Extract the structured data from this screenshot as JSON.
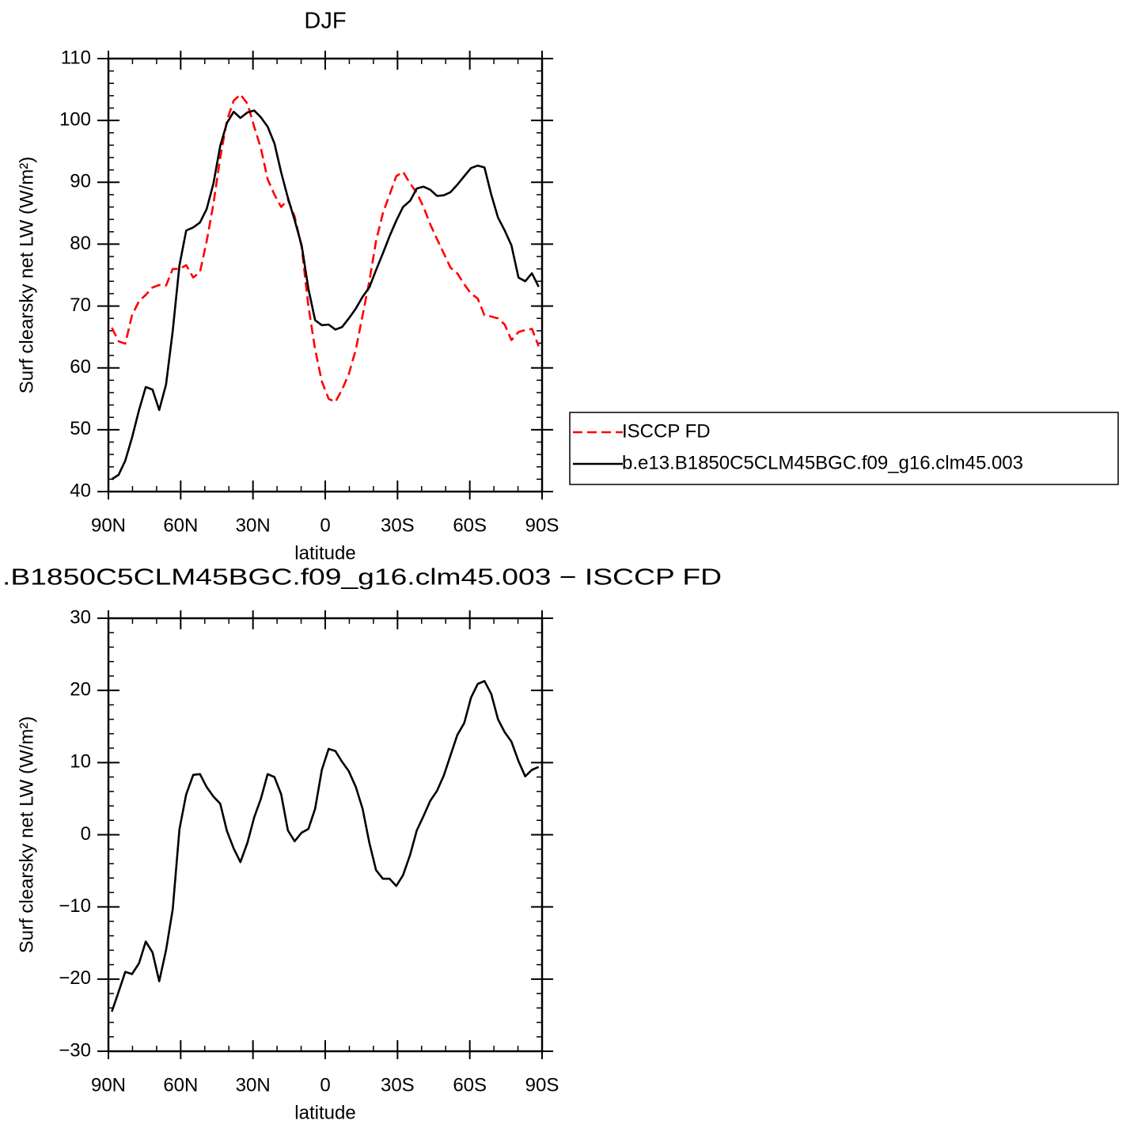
{
  "chart_data": [
    {
      "type": "line",
      "title": "DJF",
      "xlabel": "latitude",
      "ylabel": "Surf clearsky net LW (W/m²)",
      "x": [
        88.6,
        85.8,
        83.0,
        80.2,
        77.3,
        74.5,
        71.7,
        68.9,
        66.1,
        63.3,
        60.5,
        57.7,
        54.8,
        52.0,
        49.2,
        46.4,
        43.6,
        40.8,
        38.0,
        35.2,
        32.3,
        29.5,
        26.7,
        23.9,
        21.1,
        18.3,
        15.5,
        12.7,
        9.8,
        7.0,
        4.2,
        1.4,
        -1.4,
        -4.2,
        -7.0,
        -9.8,
        -12.7,
        -15.5,
        -18.3,
        -21.1,
        -23.9,
        -26.7,
        -29.5,
        -32.3,
        -35.2,
        -38.0,
        -40.8,
        -43.6,
        -46.4,
        -49.2,
        -52.0,
        -54.8,
        -57.7,
        -60.5,
        -63.3,
        -66.1,
        -68.9,
        -71.7,
        -74.5,
        -77.3,
        -80.2,
        -83.0,
        -85.8,
        -88.6
      ],
      "series": [
        {
          "name": "ISCCP FD",
          "color": "#ff0000",
          "dash": "dashed",
          "values": [
            66.5,
            64.3,
            63.9,
            68.5,
            70.8,
            71.8,
            73.0,
            73.4,
            73.3,
            76.0,
            76.0,
            76.6,
            74.6,
            75.5,
            80.5,
            86.5,
            94.0,
            100.0,
            103.2,
            104.2,
            102.7,
            99.0,
            95.5,
            90.5,
            88.0,
            86.0,
            87.2,
            84.5,
            79.5,
            70.0,
            63.0,
            57.8,
            55.0,
            54.5,
            56.5,
            59.0,
            63.0,
            68.5,
            74.0,
            80.5,
            85.0,
            88.0,
            91.0,
            91.7,
            89.8,
            88.3,
            86.0,
            83.2,
            80.8,
            78.5,
            76.2,
            75.3,
            73.5,
            72.0,
            71.2,
            68.5,
            68.3,
            68.0,
            67.0,
            64.5,
            65.8,
            66.1,
            66.3,
            63.5
          ]
        },
        {
          "name": "b.e13.B1850C5CLM45BGC.f09_g16.clm45.003",
          "color": "#000000",
          "dash": "solid",
          "values": [
            42.0,
            42.7,
            45.0,
            48.7,
            53.2,
            56.9,
            56.5,
            53.2,
            57.3,
            66.0,
            76.6,
            82.2,
            82.7,
            83.5,
            85.7,
            89.8,
            95.9,
            99.6,
            101.4,
            100.4,
            101.3,
            101.6,
            100.5,
            99.0,
            96.3,
            91.6,
            87.5,
            83.9,
            79.8,
            72.8,
            67.7,
            66.9,
            67.0,
            66.2,
            66.6,
            68.0,
            69.6,
            71.5,
            73.0,
            75.8,
            78.5,
            81.3,
            83.8,
            86.0,
            87.0,
            89.0,
            89.3,
            88.8,
            87.8,
            87.9,
            88.4,
            89.6,
            91.0,
            92.3,
            92.7,
            92.4,
            88.0,
            84.3,
            82.2,
            79.8,
            74.6,
            74.0,
            75.3,
            73.1
          ]
        }
      ],
      "xlim": [
        90,
        -90
      ],
      "xticks": [
        {
          "value": 90,
          "label": "90N"
        },
        {
          "value": 60,
          "label": "60N"
        },
        {
          "value": 30,
          "label": "30N"
        },
        0,
        {
          "value": -30,
          "label": "30S"
        },
        {
          "value": -60,
          "label": "60S"
        },
        {
          "value": -90,
          "label": "90S"
        }
      ],
      "xminorticks": [
        80,
        70,
        50,
        40,
        20,
        10,
        -10,
        -20,
        -40,
        -50,
        -70,
        -80
      ],
      "ylim": [
        40,
        110
      ],
      "yticks": [
        40,
        50,
        60,
        70,
        80,
        90,
        100,
        110
      ],
      "yminorticks": [
        42,
        44,
        46,
        48,
        52,
        54,
        56,
        58,
        62,
        64,
        66,
        68,
        72,
        74,
        76,
        78,
        82,
        84,
        86,
        88,
        92,
        94,
        96,
        98,
        102,
        104,
        106,
        108
      ],
      "legend": "right"
    },
    {
      "type": "line",
      "title": ".B1850C5CLM45BGC.f09_g16.clm45.003 − ISCCP FD",
      "xlabel": "latitude",
      "ylabel": "Surf clearsky net LW (W/m²)",
      "x": [
        88.6,
        85.8,
        83.0,
        80.2,
        77.3,
        74.5,
        71.7,
        68.9,
        66.1,
        63.3,
        60.5,
        57.7,
        54.8,
        52.0,
        49.2,
        46.4,
        43.6,
        40.8,
        38.0,
        35.2,
        32.3,
        29.5,
        26.7,
        23.9,
        21.1,
        18.3,
        15.5,
        12.7,
        9.8,
        7.0,
        4.2,
        1.4,
        -1.4,
        -4.2,
        -7.0,
        -9.8,
        -12.7,
        -15.5,
        -18.3,
        -21.1,
        -23.9,
        -26.7,
        -29.5,
        -32.3,
        -35.2,
        -38.0,
        -40.8,
        -43.6,
        -46.4,
        -49.2,
        -52.0,
        -54.8,
        -57.7,
        -60.5,
        -63.3,
        -66.1,
        -68.9,
        -71.7,
        -74.5,
        -77.3,
        -80.2,
        -83.0,
        -85.8,
        -88.6
      ],
      "series": [
        {
          "color": "#000000",
          "dash": "solid",
          "values": [
            -24.5,
            -21.8,
            -19,
            -19.3,
            -17.8,
            -14.8,
            -16.3,
            -20.3,
            -16,
            -10.3,
            0.8,
            5.6,
            8.3,
            8.4,
            6.6,
            5.3,
            4.3,
            0.5,
            -1.9,
            -3.8,
            -1.1,
            2.4,
            5,
            8.4,
            8,
            5.6,
            0.6,
            -0.9,
            0.3,
            0.8,
            3.6,
            9,
            11.9,
            11.6,
            10.1,
            8.8,
            6.6,
            3.6,
            -1.1,
            -4.9,
            -6.1,
            -6.1,
            -7.1,
            -5.6,
            -2.8,
            0.6,
            2.6,
            4.7,
            6.1,
            8.2,
            11,
            13.8,
            15.5,
            19,
            20.9,
            21.3,
            19.5,
            16,
            14.2,
            12.9,
            10.2,
            8.1,
            9,
            9.4
          ]
        }
      ],
      "xlim": [
        90,
        -90
      ],
      "xticks": [
        {
          "value": 90,
          "label": "90N"
        },
        {
          "value": 60,
          "label": "60N"
        },
        {
          "value": 30,
          "label": "30N"
        },
        0,
        {
          "value": -30,
          "label": "30S"
        },
        {
          "value": -60,
          "label": "60S"
        },
        {
          "value": -90,
          "label": "90S"
        }
      ],
      "xminorticks": [
        80,
        70,
        50,
        40,
        20,
        10,
        -10,
        -20,
        -40,
        -50,
        -70,
        -80
      ],
      "ylim": [
        -30,
        30
      ],
      "yticks": [
        {
          "value": -30,
          "label": "−30"
        },
        {
          "value": -20,
          "label": "−20"
        },
        {
          "value": -10,
          "label": "−10"
        },
        0,
        10,
        20,
        30
      ],
      "yminorticks": [
        -28,
        -26,
        -24,
        -22,
        -18,
        -16,
        -14,
        -12,
        -8,
        -6,
        -4,
        -2,
        2,
        4,
        6,
        8,
        12,
        14,
        16,
        18,
        22,
        24,
        26,
        28
      ]
    }
  ]
}
